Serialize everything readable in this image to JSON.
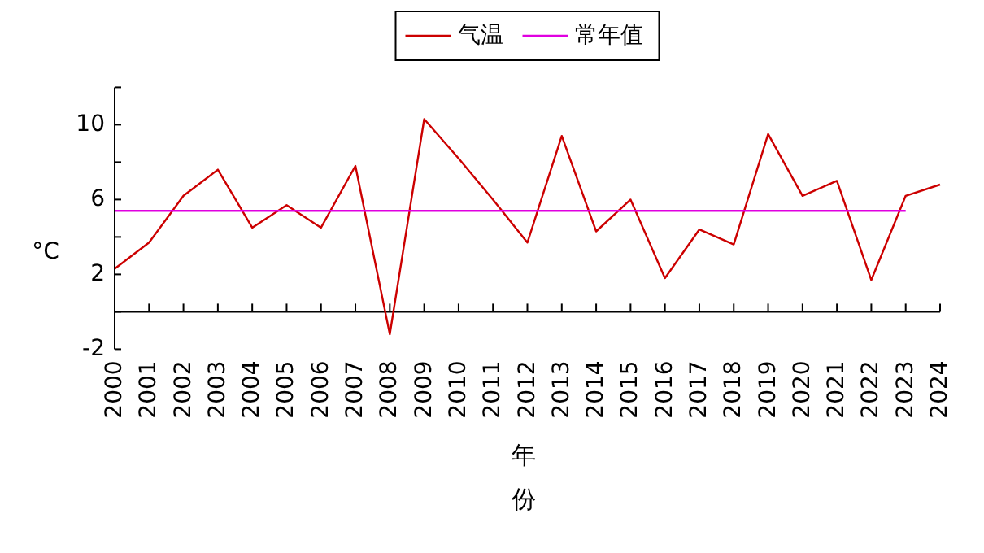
{
  "chart_data": {
    "type": "line",
    "xlabel": "年份",
    "ylabel": "°C",
    "categories": [
      "2000",
      "2001",
      "2002",
      "2003",
      "2004",
      "2005",
      "2006",
      "2007",
      "2008",
      "2009",
      "2010",
      "2011",
      "2012",
      "2013",
      "2014",
      "2015",
      "2016",
      "2017",
      "2018",
      "2019",
      "2020",
      "2021",
      "2022",
      "2023",
      "2024"
    ],
    "series": [
      {
        "name": "气温",
        "color": "#cc0000",
        "values": [
          2.3,
          3.7,
          6.2,
          7.6,
          4.5,
          5.7,
          4.5,
          7.8,
          -1.2,
          10.3,
          8.2,
          6.0,
          3.7,
          9.4,
          4.3,
          6.0,
          1.8,
          4.4,
          3.6,
          9.5,
          6.2,
          7.0,
          1.7,
          6.2,
          6.8
        ]
      },
      {
        "name": "常年值",
        "color": "#e000e0",
        "values": [
          5.4,
          5.4,
          5.4,
          5.4,
          5.4,
          5.4,
          5.4,
          5.4,
          5.4,
          5.4,
          5.4,
          5.4,
          5.4,
          5.4,
          5.4,
          5.4,
          5.4,
          5.4,
          5.4,
          5.4,
          5.4,
          5.4,
          5.4,
          5.4,
          null
        ]
      }
    ],
    "ylim": [
      -2,
      12
    ],
    "yticks": [
      -2,
      {
        "value": 0,
        "label": null
      },
      2,
      {
        "value": 4,
        "label": null
      },
      6,
      {
        "value": 8,
        "label": null
      },
      10,
      {
        "value": 12,
        "label": null
      }
    ],
    "grid": false,
    "legend": "top",
    "marker": "none",
    "line_style": "solid"
  }
}
